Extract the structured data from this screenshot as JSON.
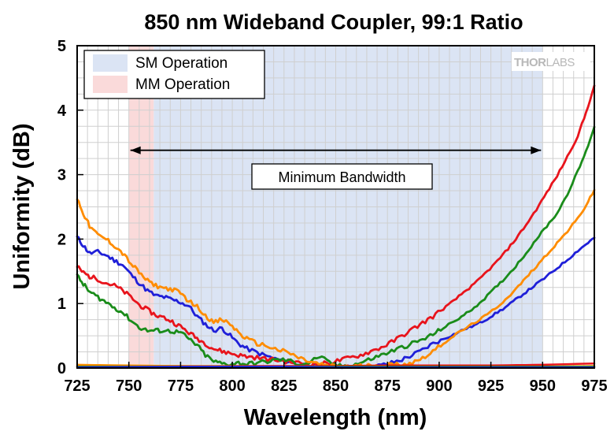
{
  "chart_data": {
    "type": "line",
    "title": "850 nm Wideband Coupler, 99:1 Ratio",
    "xlabel": "Wavelength (nm)",
    "ylabel": "Uniformity (dB)",
    "xlim": [
      725,
      975
    ],
    "ylim": [
      0,
      5
    ],
    "xticks": [
      725,
      750,
      775,
      800,
      825,
      850,
      875,
      900,
      925,
      950,
      975
    ],
    "yticks": [
      0,
      1,
      2,
      3,
      4,
      5
    ],
    "grid": true,
    "legend_position": "top-left",
    "bands": [
      {
        "name": "SM Operation",
        "range": [
          762,
          950
        ],
        "color": "#dbe4f4"
      },
      {
        "name": "MM Operation",
        "range": [
          750,
          762
        ],
        "color": "#fadada"
      }
    ],
    "annotation": {
      "text": "Minimum Bandwidth",
      "from": 750,
      "to": 950,
      "y": 3.5
    },
    "logo": {
      "part1": "THOR",
      "part2": "LABS"
    },
    "series": [
      {
        "name": "blue",
        "color": "#1f1fd8",
        "points": [
          [
            725,
            2.03
          ],
          [
            728,
            1.9
          ],
          [
            731,
            1.78
          ],
          [
            735,
            1.8
          ],
          [
            739,
            1.75
          ],
          [
            743,
            1.67
          ],
          [
            747,
            1.6
          ],
          [
            751,
            1.45
          ],
          [
            755,
            1.32
          ],
          [
            759,
            1.2
          ],
          [
            763,
            1.12
          ],
          [
            767,
            1.1
          ],
          [
            771,
            1.06
          ],
          [
            775,
            1.02
          ],
          [
            779,
            0.96
          ],
          [
            783,
            0.8
          ],
          [
            787,
            0.68
          ],
          [
            791,
            0.58
          ],
          [
            795,
            0.62
          ],
          [
            799,
            0.5
          ],
          [
            803,
            0.38
          ],
          [
            807,
            0.3
          ],
          [
            812,
            0.24
          ],
          [
            817,
            0.18
          ],
          [
            822,
            0.13
          ],
          [
            827,
            0.1
          ],
          [
            832,
            0.06
          ],
          [
            837,
            0.04
          ],
          [
            842,
            0.03
          ],
          [
            847,
            0.02
          ],
          [
            852,
            0.01
          ],
          [
            857,
            0.01
          ],
          [
            862,
            0.01
          ],
          [
            867,
            0.02
          ],
          [
            872,
            0.04
          ],
          [
            877,
            0.08
          ],
          [
            882,
            0.13
          ],
          [
            887,
            0.2
          ],
          [
            892,
            0.28
          ],
          [
            897,
            0.38
          ],
          [
            902,
            0.45
          ],
          [
            907,
            0.52
          ],
          [
            912,
            0.6
          ],
          [
            917,
            0.66
          ],
          [
            922,
            0.74
          ],
          [
            927,
            0.84
          ],
          [
            932,
            0.94
          ],
          [
            937,
            1.06
          ],
          [
            942,
            1.18
          ],
          [
            947,
            1.3
          ],
          [
            952,
            1.42
          ],
          [
            957,
            1.55
          ],
          [
            962,
            1.68
          ],
          [
            967,
            1.82
          ],
          [
            971,
            1.92
          ],
          [
            975,
            2.02
          ]
        ]
      },
      {
        "name": "red",
        "color": "#e8141c",
        "points": [
          [
            725,
            1.57
          ],
          [
            728,
            1.48
          ],
          [
            731,
            1.42
          ],
          [
            735,
            1.38
          ],
          [
            739,
            1.32
          ],
          [
            743,
            1.28
          ],
          [
            747,
            1.2
          ],
          [
            751,
            1.1
          ],
          [
            755,
            0.98
          ],
          [
            759,
            0.9
          ],
          [
            763,
            0.82
          ],
          [
            767,
            0.78
          ],
          [
            771,
            0.72
          ],
          [
            775,
            0.64
          ],
          [
            779,
            0.55
          ],
          [
            783,
            0.46
          ],
          [
            787,
            0.38
          ],
          [
            791,
            0.3
          ],
          [
            795,
            0.26
          ],
          [
            799,
            0.23
          ],
          [
            803,
            0.2
          ],
          [
            807,
            0.18
          ],
          [
            812,
            0.16
          ],
          [
            817,
            0.14
          ],
          [
            822,
            0.12
          ],
          [
            827,
            0.1
          ],
          [
            832,
            0.08
          ],
          [
            837,
            0.06
          ],
          [
            842,
            0.06
          ],
          [
            847,
            0.08
          ],
          [
            852,
            0.12
          ],
          [
            857,
            0.16
          ],
          [
            862,
            0.2
          ],
          [
            867,
            0.26
          ],
          [
            872,
            0.32
          ],
          [
            877,
            0.4
          ],
          [
            882,
            0.5
          ],
          [
            887,
            0.6
          ],
          [
            892,
            0.7
          ],
          [
            897,
            0.8
          ],
          [
            902,
            0.92
          ],
          [
            907,
            1.04
          ],
          [
            912,
            1.18
          ],
          [
            917,
            1.3
          ],
          [
            922,
            1.46
          ],
          [
            927,
            1.62
          ],
          [
            932,
            1.8
          ],
          [
            937,
            2.0
          ],
          [
            942,
            2.22
          ],
          [
            947,
            2.46
          ],
          [
            952,
            2.72
          ],
          [
            957,
            2.98
          ],
          [
            962,
            3.28
          ],
          [
            967,
            3.6
          ],
          [
            971,
            3.96
          ],
          [
            975,
            4.38
          ]
        ]
      },
      {
        "name": "green",
        "color": "#1a8c1a",
        "points": [
          [
            725,
            1.43
          ],
          [
            728,
            1.3
          ],
          [
            731,
            1.18
          ],
          [
            735,
            1.1
          ],
          [
            739,
            1.02
          ],
          [
            743,
            0.94
          ],
          [
            747,
            0.86
          ],
          [
            751,
            0.74
          ],
          [
            755,
            0.63
          ],
          [
            759,
            0.58
          ],
          [
            763,
            0.58
          ],
          [
            767,
            0.58
          ],
          [
            771,
            0.57
          ],
          [
            775,
            0.55
          ],
          [
            779,
            0.45
          ],
          [
            783,
            0.35
          ],
          [
            787,
            0.2
          ],
          [
            791,
            0.1
          ],
          [
            795,
            0.07
          ],
          [
            799,
            0.06
          ],
          [
            803,
            0.08
          ],
          [
            807,
            0.06
          ],
          [
            812,
            0.08
          ],
          [
            817,
            0.1
          ],
          [
            822,
            0.13
          ],
          [
            827,
            0.12
          ],
          [
            832,
            0.06
          ],
          [
            837,
            0.08
          ],
          [
            842,
            0.18
          ],
          [
            847,
            0.08
          ],
          [
            852,
            0.03
          ],
          [
            857,
            0.04
          ],
          [
            862,
            0.08
          ],
          [
            867,
            0.14
          ],
          [
            872,
            0.2
          ],
          [
            877,
            0.26
          ],
          [
            882,
            0.32
          ],
          [
            887,
            0.38
          ],
          [
            892,
            0.44
          ],
          [
            897,
            0.52
          ],
          [
            902,
            0.62
          ],
          [
            907,
            0.72
          ],
          [
            912,
            0.82
          ],
          [
            917,
            0.94
          ],
          [
            922,
            1.08
          ],
          [
            927,
            1.24
          ],
          [
            932,
            1.4
          ],
          [
            937,
            1.58
          ],
          [
            942,
            1.78
          ],
          [
            947,
            2.0
          ],
          [
            952,
            2.2
          ],
          [
            957,
            2.4
          ],
          [
            962,
            2.7
          ],
          [
            967,
            3.05
          ],
          [
            971,
            3.36
          ],
          [
            975,
            3.74
          ]
        ]
      },
      {
        "name": "orange",
        "color": "#ff8c00",
        "points": [
          [
            725,
            2.63
          ],
          [
            728,
            2.4
          ],
          [
            731,
            2.2
          ],
          [
            735,
            2.06
          ],
          [
            739,
            2.0
          ],
          [
            743,
            1.9
          ],
          [
            747,
            1.78
          ],
          [
            751,
            1.62
          ],
          [
            755,
            1.48
          ],
          [
            759,
            1.35
          ],
          [
            763,
            1.28
          ],
          [
            767,
            1.24
          ],
          [
            771,
            1.22
          ],
          [
            775,
            1.16
          ],
          [
            779,
            1.04
          ],
          [
            783,
            0.95
          ],
          [
            787,
            0.82
          ],
          [
            791,
            0.7
          ],
          [
            795,
            0.75
          ],
          [
            799,
            0.68
          ],
          [
            803,
            0.55
          ],
          [
            807,
            0.45
          ],
          [
            812,
            0.38
          ],
          [
            817,
            0.34
          ],
          [
            822,
            0.28
          ],
          [
            827,
            0.24
          ],
          [
            832,
            0.16
          ],
          [
            837,
            0.1
          ],
          [
            842,
            0.06
          ],
          [
            847,
            0.03
          ],
          [
            852,
            0.02
          ],
          [
            857,
            0.03
          ],
          [
            862,
            0.03
          ],
          [
            867,
            0.04
          ],
          [
            872,
            0.04
          ],
          [
            877,
            0.05
          ],
          [
            882,
            0.06
          ],
          [
            887,
            0.08
          ],
          [
            892,
            0.16
          ],
          [
            897,
            0.26
          ],
          [
            902,
            0.38
          ],
          [
            907,
            0.5
          ],
          [
            912,
            0.6
          ],
          [
            917,
            0.7
          ],
          [
            922,
            0.8
          ],
          [
            927,
            0.92
          ],
          [
            932,
            1.06
          ],
          [
            937,
            1.22
          ],
          [
            942,
            1.4
          ],
          [
            947,
            1.58
          ],
          [
            952,
            1.76
          ],
          [
            957,
            1.94
          ],
          [
            962,
            2.12
          ],
          [
            967,
            2.32
          ],
          [
            971,
            2.52
          ],
          [
            975,
            2.76
          ]
        ]
      },
      {
        "name": "red-baseline",
        "color": "#e8141c",
        "points": [
          [
            725,
            0.03
          ],
          [
            775,
            0.03
          ],
          [
            825,
            0.03
          ],
          [
            850,
            0.03
          ],
          [
            875,
            0.04
          ],
          [
            900,
            0.04
          ],
          [
            925,
            0.04
          ],
          [
            950,
            0.05
          ],
          [
            975,
            0.07
          ]
        ]
      },
      {
        "name": "orange-baseline",
        "color": "#ff8c00",
        "points": [
          [
            725,
            0.05
          ],
          [
            775,
            0.03
          ],
          [
            825,
            0.02
          ],
          [
            850,
            0.02
          ],
          [
            875,
            0.02
          ],
          [
            900,
            0.02
          ],
          [
            925,
            0.02
          ],
          [
            950,
            0.02
          ],
          [
            975,
            0.03
          ]
        ]
      },
      {
        "name": "green-baseline",
        "color": "#1a8c1a",
        "points": [
          [
            725,
            0.02
          ],
          [
            775,
            0.02
          ],
          [
            825,
            0.02
          ],
          [
            850,
            0.02
          ],
          [
            875,
            0.02
          ],
          [
            900,
            0.02
          ],
          [
            925,
            0.02
          ],
          [
            950,
            0.02
          ],
          [
            975,
            0.02
          ]
        ]
      },
      {
        "name": "blue-baseline",
        "color": "#1f1fd8",
        "points": [
          [
            725,
            0.01
          ],
          [
            775,
            0.02
          ],
          [
            825,
            0.02
          ],
          [
            850,
            0.01
          ],
          [
            875,
            0.01
          ],
          [
            900,
            0.01
          ],
          [
            925,
            0.01
          ],
          [
            950,
            0.01
          ],
          [
            975,
            0.01
          ]
        ]
      }
    ]
  }
}
